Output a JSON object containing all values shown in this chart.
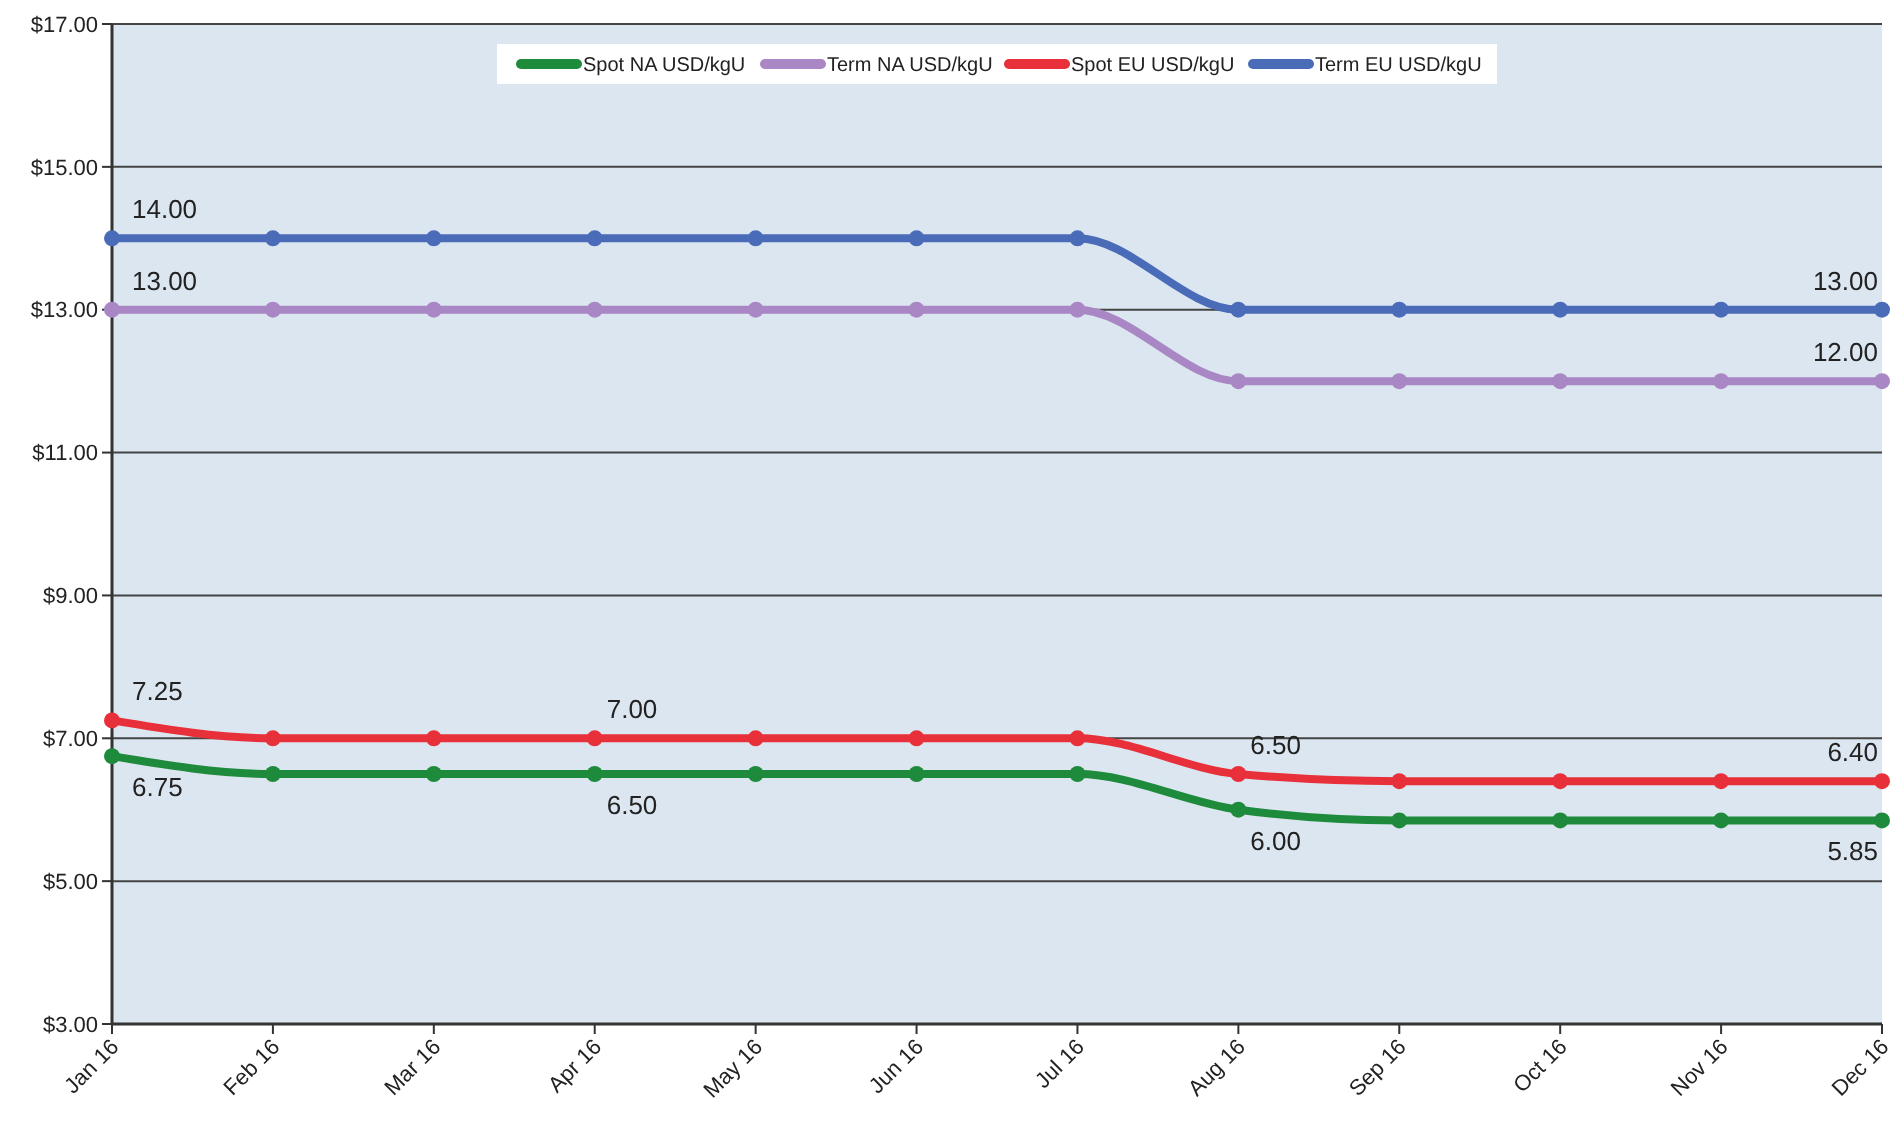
{
  "chart_data": {
    "type": "line",
    "categories": [
      "Jan 16",
      "Feb 16",
      "Mar 16",
      "Apr 16",
      "May 16",
      "Jun 16",
      "Jul 16",
      "Aug 16",
      "Sep 16",
      "Oct 16",
      "Nov 16",
      "Dec 16"
    ],
    "series": [
      {
        "name": "Spot NA USD/kgU",
        "color": "#1e8a3c",
        "values": [
          6.75,
          6.5,
          6.5,
          6.5,
          6.5,
          6.5,
          6.5,
          6.0,
          5.85,
          5.85,
          5.85,
          5.85
        ],
        "value_labels": [
          "6.75",
          null,
          null,
          "6.50",
          null,
          null,
          null,
          "6.00",
          null,
          null,
          null,
          "5.85"
        ]
      },
      {
        "name": "Term NA USD/kgU",
        "color": "#a887c4",
        "values": [
          13,
          13,
          13,
          13,
          13,
          13,
          13,
          12,
          12,
          12,
          12,
          12
        ],
        "value_labels": [
          "13.00",
          null,
          null,
          null,
          null,
          null,
          null,
          null,
          null,
          null,
          null,
          "12.00"
        ]
      },
      {
        "name": "Spot EU USD/kgU",
        "color": "#e8303a",
        "values": [
          7.25,
          7,
          7,
          7,
          7,
          7,
          7,
          6.5,
          6.4,
          6.4,
          6.4,
          6.4
        ],
        "value_labels": [
          "7.25",
          null,
          null,
          "7.00",
          null,
          null,
          null,
          "6.50",
          null,
          null,
          null,
          "6.40"
        ]
      },
      {
        "name": "Term EU USD/kgU",
        "color": "#4a6cb8",
        "values": [
          14,
          14,
          14,
          14,
          14,
          14,
          14,
          13,
          13,
          13,
          13,
          13
        ],
        "value_labels": [
          "14.00",
          null,
          null,
          null,
          null,
          null,
          null,
          null,
          null,
          null,
          null,
          "13.00"
        ]
      }
    ],
    "ylim": [
      3,
      17
    ],
    "yticks": [
      {
        "value": 3,
        "label": "$3.00"
      },
      {
        "value": 5,
        "label": "$5.00"
      },
      {
        "value": 7,
        "label": "$7.00"
      },
      {
        "value": 9,
        "label": "$9.00"
      },
      {
        "value": 11,
        "label": "$11.00"
      },
      {
        "value": 13,
        "label": "$13.00"
      },
      {
        "value": 15,
        "label": "$15.00"
      },
      {
        "value": 17,
        "label": "$17.00"
      }
    ],
    "grid": "y",
    "legend": "top",
    "marker": "circle",
    "line_style": "solid"
  }
}
